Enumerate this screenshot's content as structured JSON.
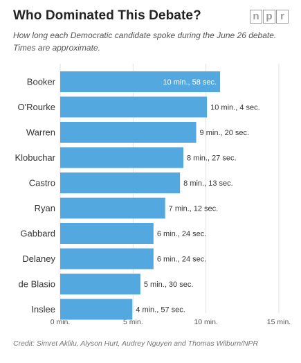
{
  "header": {
    "title": "Who Dominated This Debate?",
    "logo_letters": [
      "n",
      "p",
      "r"
    ]
  },
  "subtitle_lines": [
    "How long each Democratic candidate spoke during the June 26 debate.",
    "Times are approximate."
  ],
  "credit": "Credit: Simret Aklilu, Alyson Hurt, Audrey Nguyen and Thomas Wilburn/NPR",
  "colors": {
    "bar": "#52a8df",
    "label_inside": "#ffffff",
    "label_outside": "#333333",
    "grid": "#e2e2e2"
  },
  "chart_data": {
    "type": "bar",
    "orientation": "horizontal",
    "categories": [
      "Booker",
      "O'Rourke",
      "Warren",
      "Klobuchar",
      "Castro",
      "Ryan",
      "Gabbard",
      "Delaney",
      "de Blasio",
      "Inslee"
    ],
    "values": [
      10.97,
      10.07,
      9.33,
      8.45,
      8.22,
      7.2,
      6.4,
      6.4,
      5.5,
      4.95
    ],
    "value_labels": [
      "10 min., 58 sec.",
      "10 min., 4 sec.",
      "9 min., 20 sec.",
      "8 min., 27 sec.",
      "8 min., 13 sec.",
      "7 min., 12 sec.",
      "6 min., 24 sec.",
      "6 min., 24 sec.",
      "5 min., 30 sec.",
      "4 min., 57 sec."
    ],
    "xlim": [
      0,
      15
    ],
    "ticks": [
      0,
      5,
      10,
      15
    ],
    "tick_labels": [
      "0 min.",
      "5 min.",
      "10 min.",
      "15 min."
    ],
    "grid": true,
    "title": "Who Dominated This Debate?"
  }
}
